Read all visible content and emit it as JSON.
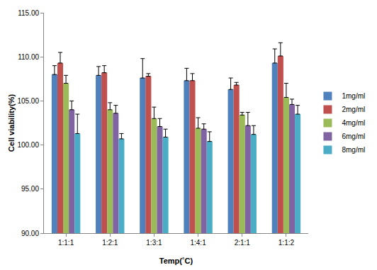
{
  "chart_data": {
    "type": "bar",
    "x_label": "Temp(˚C)",
    "y_label": "Cell viability(%)",
    "categories": [
      "1:1:1",
      "1:2:1",
      "1:3:1",
      "1:4:1",
      "2:1:1",
      "1:1:2"
    ],
    "series": [
      {
        "name": "1mg/ml",
        "color": "#4f81bd",
        "values": [
          108.0,
          107.9,
          107.6,
          107.3,
          106.3,
          109.3
        ],
        "errors": [
          1.0,
          1.0,
          2.2,
          1.4,
          1.3,
          1.6
        ]
      },
      {
        "name": "2mg/ml",
        "color": "#c0504d",
        "values": [
          109.3,
          108.2,
          107.8,
          107.3,
          106.8,
          110.1
        ],
        "errors": [
          1.2,
          0.8,
          0.3,
          0.8,
          0.3,
          1.5
        ]
      },
      {
        "name": "4mg/ml",
        "color": "#9bbb59",
        "values": [
          107.0,
          104.0,
          103.0,
          101.9,
          103.4,
          105.4
        ],
        "errors": [
          0.9,
          0.8,
          1.3,
          1.2,
          0.3,
          1.6
        ]
      },
      {
        "name": "6mg/ml",
        "color": "#8064a2",
        "values": [
          104.0,
          103.6,
          102.1,
          101.8,
          102.2,
          104.6
        ],
        "errors": [
          1.0,
          0.9,
          0.9,
          0.6,
          1.5,
          0.6
        ]
      },
      {
        "name": "8mg/ml",
        "color": "#4bacc6",
        "values": [
          101.3,
          100.7,
          100.9,
          100.4,
          101.2,
          103.5
        ],
        "errors": [
          2.2,
          0.6,
          0.9,
          1.1,
          1.0,
          1.0
        ]
      }
    ],
    "ylim": [
      90,
      115
    ],
    "yticks": [
      {
        "value": 90,
        "label": "90.00"
      },
      {
        "value": 95,
        "label": "95.00"
      },
      {
        "value": 100,
        "label": "100.00"
      },
      {
        "value": 105,
        "label": "105.00"
      },
      {
        "value": 110,
        "label": "110.00"
      },
      {
        "value": 115,
        "label": "115.00"
      }
    ],
    "grid": false,
    "legend": "right"
  }
}
